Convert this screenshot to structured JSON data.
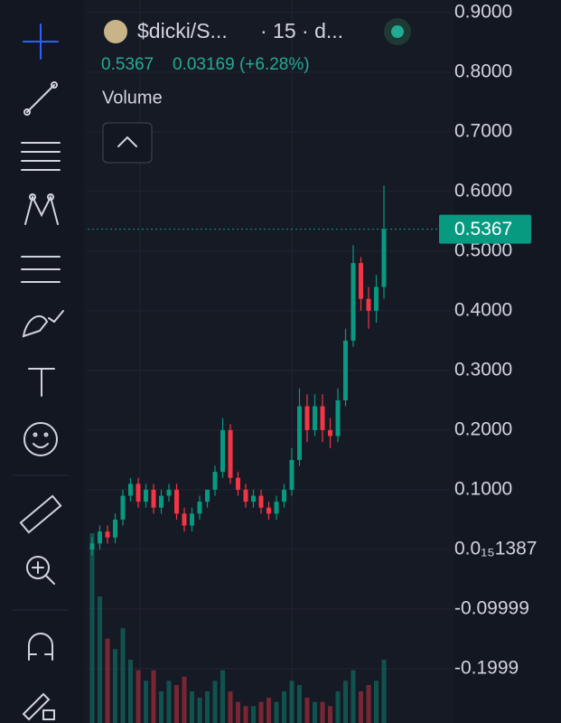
{
  "header": {
    "symbol": "$dicki/S...",
    "interval": "· 15 · d...",
    "change": "0.03169 (+6.28%)",
    "indicator": "Volume"
  },
  "chart_data": {
    "type": "candlestick",
    "open": [
      0.0,
      0.01,
      0.03,
      0.02,
      0.05,
      0.09,
      0.11,
      0.08,
      0.1,
      0.07,
      0.09,
      0.1,
      0.06,
      0.04,
      0.06,
      0.08,
      0.1,
      0.13,
      0.2,
      0.12,
      0.1,
      0.08,
      0.09,
      0.07,
      0.06,
      0.08,
      0.1,
      0.15,
      0.24,
      0.2,
      0.24,
      0.2,
      0.19,
      0.25,
      0.35,
      0.48,
      0.42,
      0.4,
      0.44
    ],
    "high": [
      0.02,
      0.04,
      0.04,
      0.06,
      0.1,
      0.12,
      0.12,
      0.11,
      0.11,
      0.1,
      0.11,
      0.11,
      0.07,
      0.07,
      0.09,
      0.1,
      0.14,
      0.22,
      0.21,
      0.13,
      0.11,
      0.1,
      0.1,
      0.08,
      0.09,
      0.11,
      0.17,
      0.27,
      0.26,
      0.26,
      0.26,
      0.22,
      0.27,
      0.37,
      0.51,
      0.49,
      0.44,
      0.46,
      0.61
    ],
    "low": [
      -0.01,
      0.0,
      0.01,
      0.01,
      0.04,
      0.08,
      0.07,
      0.07,
      0.06,
      0.06,
      0.08,
      0.05,
      0.03,
      0.03,
      0.05,
      0.07,
      0.09,
      0.12,
      0.11,
      0.09,
      0.07,
      0.07,
      0.06,
      0.05,
      0.05,
      0.07,
      0.09,
      0.14,
      0.18,
      0.19,
      0.18,
      0.17,
      0.18,
      0.24,
      0.34,
      0.4,
      0.37,
      0.38,
      0.42
    ],
    "close": [
      0.01,
      0.03,
      0.02,
      0.05,
      0.09,
      0.11,
      0.08,
      0.1,
      0.07,
      0.09,
      0.1,
      0.06,
      0.04,
      0.06,
      0.08,
      0.1,
      0.13,
      0.2,
      0.12,
      0.1,
      0.08,
      0.09,
      0.07,
      0.06,
      0.08,
      0.1,
      0.15,
      0.24,
      0.2,
      0.24,
      0.2,
      0.19,
      0.25,
      0.35,
      0.48,
      0.42,
      0.4,
      0.44,
      0.5367
    ],
    "volume": [
      90,
      60,
      40,
      35,
      45,
      30,
      25,
      20,
      25,
      15,
      20,
      18,
      22,
      15,
      12,
      15,
      20,
      25,
      15,
      10,
      8,
      8,
      10,
      12,
      10,
      15,
      20,
      18,
      12,
      10,
      10,
      8,
      15,
      20,
      25,
      15,
      18,
      20,
      30
    ],
    "up_color": "#089981",
    "down_color": "#f23645",
    "last_price": 0.5367,
    "ylim": [
      -0.291,
      0.921
    ],
    "yticks": [
      {
        "value": 0.9,
        "label": "0.9000"
      },
      {
        "value": 0.8,
        "label": "0.8000"
      },
      {
        "value": 0.7,
        "label": "0.7000"
      },
      {
        "value": 0.6,
        "label": "0.6000"
      },
      {
        "value": 0.5,
        "label": "0.5000"
      },
      {
        "value": 0.4,
        "label": "0.4000"
      },
      {
        "value": 0.3,
        "label": "0.3000"
      },
      {
        "value": 0.2,
        "label": "0.2000"
      },
      {
        "value": 0.1,
        "label": "0.1000"
      },
      {
        "value": 1.387e-16,
        "label": "0.0₁₅1387"
      },
      {
        "value": -0.09999,
        "label": "-0.09999"
      },
      {
        "value": -0.1999,
        "label": "-0.1999"
      }
    ],
    "grid": true
  }
}
